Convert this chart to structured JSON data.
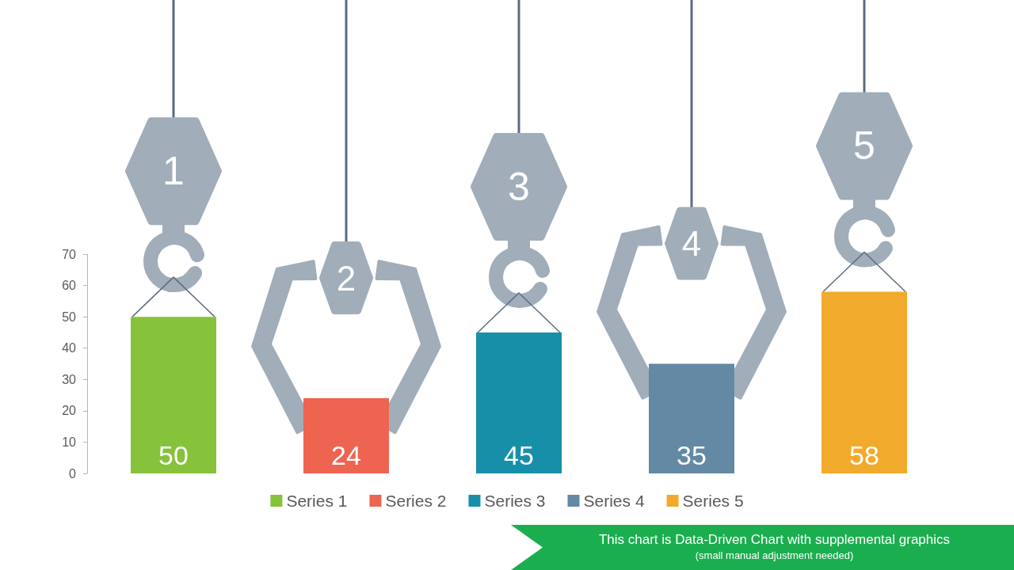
{
  "chart_data": {
    "type": "bar",
    "categories": [
      "1",
      "2",
      "3",
      "4",
      "5"
    ],
    "series": [
      {
        "name": "Series 1",
        "color": "#86c23a",
        "values": [
          50,
          null,
          null,
          null,
          null
        ]
      },
      {
        "name": "Series 2",
        "color": "#ef6351",
        "values": [
          null,
          24,
          null,
          null,
          null
        ]
      },
      {
        "name": "Series 3",
        "color": "#188fa8",
        "values": [
          null,
          null,
          45,
          null,
          null
        ]
      },
      {
        "name": "Series 4",
        "color": "#6389a4",
        "values": [
          null,
          null,
          null,
          35,
          null
        ]
      },
      {
        "name": "Series 5",
        "color": "#f2aa2c",
        "values": [
          null,
          null,
          null,
          null,
          58
        ]
      }
    ],
    "stacked": true,
    "ylim": [
      0,
      70
    ],
    "yticks": [
      0,
      10,
      20,
      30,
      40,
      50,
      60,
      70
    ],
    "grid": false,
    "legend": "bottom",
    "data_labels": true,
    "annotations": [
      "This chart is Data-Driven Chart with supplemental graphics",
      "(small manual adjustment needed)"
    ]
  }
}
